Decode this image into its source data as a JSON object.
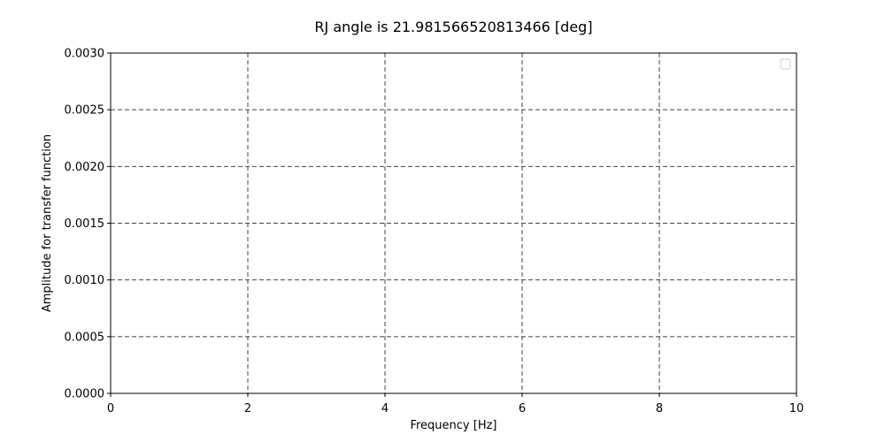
{
  "chart_data": {
    "type": "line",
    "title": "RJ angle is 21.981566520813466 [deg]",
    "xlabel": "Frequency [Hz]",
    "ylabel": "Amplitude for transfer function",
    "xlim": [
      0,
      10
    ],
    "ylim": [
      0,
      0.003
    ],
    "xticks": [
      0,
      2,
      4,
      6,
      8,
      10
    ],
    "xtick_labels": [
      "0",
      "2",
      "4",
      "6",
      "8",
      "10"
    ],
    "yticks": [
      0,
      0.0005,
      0.001,
      0.0015,
      0.002,
      0.0025,
      0.003
    ],
    "ytick_labels": [
      "0.0000",
      "0.0005",
      "0.0010",
      "0.0015",
      "0.0020",
      "0.0025",
      "0.0030"
    ],
    "grid": true,
    "legend": {
      "placement": "top-right",
      "entries": []
    },
    "series": []
  }
}
